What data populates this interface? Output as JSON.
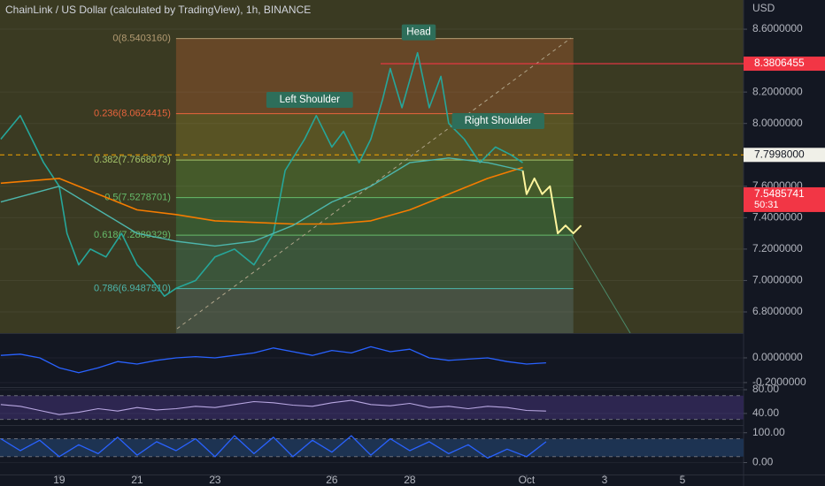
{
  "chart_data": [
    {
      "type": "line",
      "title": "ChainLink / US Dollar (calculated by TradingView), 1h, BINANCE",
      "y_label": "USD",
      "xlim": [
        17.48,
        36.57
      ],
      "ylim": [
        6.665,
        8.786
      ],
      "yticks": [
        {
          "value": 6.8,
          "label": "6.8000000"
        },
        {
          "value": 7.0,
          "label": "7.0000000"
        },
        {
          "value": 7.2,
          "label": "7.2000000"
        },
        {
          "value": 7.4,
          "label": "7.4000000"
        },
        {
          "value": 7.6,
          "label": "7.6000000"
        },
        {
          "value": 8.0,
          "label": "8.0000000"
        },
        {
          "value": 8.2,
          "label": "8.2000000"
        },
        {
          "value": 8.6,
          "label": "8.6000000"
        }
      ],
      "series": [
        {
          "color": "#26a69a",
          "width": 1.6,
          "x": [
            17.5,
            18.0,
            18.3,
            18.6,
            19.0,
            19.2,
            19.5,
            19.8,
            20.2,
            20.6,
            21.0,
            21.4,
            21.7,
            22.0,
            22.5,
            23.0,
            23.5,
            24.0,
            24.5,
            24.8,
            25.3,
            25.6,
            26.0,
            26.3,
            26.7,
            27.0,
            27.3,
            27.5,
            27.8,
            28.2,
            28.5,
            28.8,
            29.0,
            29.4,
            29.8,
            30.2,
            30.6,
            30.9
          ],
          "values": [
            7.9,
            8.05,
            7.9,
            7.75,
            7.6,
            7.3,
            7.1,
            7.2,
            7.15,
            7.3,
            7.1,
            7.0,
            6.9,
            6.95,
            7.0,
            7.15,
            7.2,
            7.1,
            7.3,
            7.7,
            7.9,
            8.05,
            7.85,
            7.95,
            7.75,
            7.9,
            8.15,
            8.35,
            8.1,
            8.45,
            8.1,
            8.3,
            8.0,
            7.9,
            7.75,
            7.85,
            7.8,
            7.75
          ]
        },
        {
          "color": "#fff59d",
          "width": 2,
          "x": [
            30.9,
            31.0,
            31.2,
            31.4,
            31.6,
            31.8,
            32.0,
            32.2,
            32.4
          ],
          "values": [
            7.7,
            7.55,
            7.65,
            7.55,
            7.6,
            7.3,
            7.35,
            7.3,
            7.35
          ]
        },
        {
          "color": "#f57c00",
          "width": 1.6,
          "x": [
            17.5,
            19,
            20,
            21,
            22,
            23,
            24,
            25,
            26,
            27,
            28,
            29,
            30,
            30.9
          ],
          "values": [
            7.62,
            7.65,
            7.55,
            7.45,
            7.42,
            7.38,
            7.37,
            7.36,
            7.36,
            7.38,
            7.45,
            7.55,
            7.65,
            7.72
          ]
        },
        {
          "color": "#4db6ac",
          "width": 1.4,
          "x": [
            17.5,
            19,
            20,
            21,
            22,
            23,
            24,
            25,
            26,
            27,
            28,
            29,
            30,
            30.9
          ],
          "values": [
            7.5,
            7.6,
            7.45,
            7.3,
            7.25,
            7.22,
            7.25,
            7.35,
            7.5,
            7.6,
            7.75,
            7.78,
            7.75,
            7.7
          ]
        }
      ],
      "fib_x": [
        22.0,
        32.2
      ],
      "fib": [
        {
          "value": 8.540316,
          "label": "0(8.5403160)",
          "color": "#b39b72",
          "fill": "#6e4a28"
        },
        {
          "value": 8.0624415,
          "label": "0.236(8.0624415)",
          "color": "#e8643c",
          "fill": "#5e5824"
        },
        {
          "value": 7.7668073,
          "label": "0.382(7.7668073)",
          "color": "#a5c46a",
          "fill": "#48602c"
        },
        {
          "value": 7.5278701,
          "label": "0.5(7.5278701)",
          "color": "#66bb6a",
          "fill": "#3a5e34"
        },
        {
          "value": 7.2889329,
          "label": "0.618(7.2889329)",
          "color": "#66bb6a",
          "fill": "#3c5a3e"
        },
        {
          "value": 6.948751,
          "label": "0.786(6.9487510)",
          "color": "#4db6ac",
          "fill": "#4a5648"
        }
      ],
      "price_labels": [
        {
          "value": 8.3806455,
          "label": "8.3806455",
          "color": "#f23645",
          "text_color": "#ffffff"
        },
        {
          "value": 7.7998,
          "label": "7.7998000",
          "color": "#f0f0e8",
          "text_color": "#131722"
        },
        {
          "value": 7.5485741,
          "label": "7.5485741",
          "sub": "50:31",
          "color": "#f23645",
          "text_color": "#ffffff"
        }
      ],
      "annotations": [
        {
          "text": "Left Shoulder",
          "x": 25.43,
          "y": 8.15
        },
        {
          "text": "Head",
          "x": 28.23,
          "y": 8.58
        },
        {
          "text": "Right Shoulder",
          "x": 30.27,
          "y": 8.015
        }
      ]
    },
    {
      "type": "line",
      "xlim": [
        17.48,
        36.57
      ],
      "ylim": [
        -0.229,
        0.193
      ],
      "yticks": [
        {
          "value": 0,
          "label": "0.0000000"
        },
        {
          "value": -0.2,
          "label": "-0.2000000"
        }
      ],
      "series": [
        {
          "color": "#2962ff",
          "width": 1.3,
          "x": [
            17.5,
            18,
            18.5,
            19,
            19.5,
            20,
            20.5,
            21,
            21.5,
            22,
            22.5,
            23,
            23.5,
            24,
            24.5,
            25,
            25.5,
            26,
            26.5,
            27,
            27.5,
            28,
            28.5,
            29,
            29.5,
            30,
            30.5,
            31,
            31.5
          ],
          "values": [
            0.02,
            0.03,
            0.0,
            -0.08,
            -0.12,
            -0.08,
            -0.03,
            -0.05,
            -0.02,
            0.0,
            0.01,
            0.0,
            0.02,
            0.04,
            0.08,
            0.05,
            0.02,
            0.06,
            0.04,
            0.09,
            0.05,
            0.07,
            0.0,
            -0.02,
            -0.01,
            0.0,
            -0.03,
            -0.05,
            -0.04
          ]
        }
      ]
    },
    {
      "type": "line",
      "xlim": [
        17.48,
        36.57
      ],
      "ylim": [
        22,
        81.5
      ],
      "yticks": [
        {
          "value": 80,
          "label": "80.00"
        },
        {
          "value": 40,
          "label": "40.00"
        }
      ],
      "bands": [
        30,
        70
      ],
      "band_fill": "#2d2650",
      "series": [
        {
          "color": "#b7a6e0",
          "width": 1.1,
          "x": [
            17.5,
            18,
            18.5,
            19,
            19.5,
            20,
            20.5,
            21,
            21.5,
            22,
            22.5,
            23,
            23.5,
            24,
            24.5,
            25,
            25.5,
            26,
            26.5,
            27,
            27.5,
            28,
            28.5,
            29,
            29.5,
            30,
            30.5,
            31,
            31.5
          ],
          "values": [
            55,
            52,
            45,
            38,
            42,
            48,
            44,
            50,
            46,
            48,
            52,
            50,
            55,
            60,
            58,
            54,
            52,
            58,
            62,
            55,
            53,
            57,
            50,
            52,
            48,
            52,
            50,
            45,
            44
          ]
        }
      ]
    },
    {
      "type": "line",
      "xlim": [
        17.48,
        36.57
      ],
      "ylim": [
        -40,
        120
      ],
      "yticks": [
        {
          "value": 100,
          "label": "100.00"
        },
        {
          "value": 0,
          "label": "0.00"
        }
      ],
      "bands": [
        20,
        80
      ],
      "band_fill": "#1d3352",
      "xticks": [
        19,
        21,
        23,
        26,
        28,
        {
          "value": 31,
          "label": "Oct"
        },
        {
          "value": 33,
          "label": "3"
        },
        {
          "value": 35,
          "label": "5"
        }
      ],
      "series": [
        {
          "color": "#2962ff",
          "width": 1.3,
          "x": [
            17.5,
            18,
            18.5,
            19,
            19.5,
            20,
            20.5,
            21,
            21.5,
            22,
            22.5,
            23,
            23.5,
            24,
            24.5,
            25,
            25.5,
            26,
            26.5,
            27,
            27.5,
            28,
            28.5,
            29,
            29.5,
            30,
            30.5,
            31,
            31.5
          ],
          "values": [
            80,
            40,
            75,
            20,
            60,
            30,
            85,
            25,
            70,
            40,
            80,
            20,
            90,
            30,
            85,
            20,
            75,
            35,
            90,
            25,
            80,
            40,
            70,
            30,
            60,
            15,
            45,
            20,
            70
          ]
        }
      ]
    }
  ]
}
